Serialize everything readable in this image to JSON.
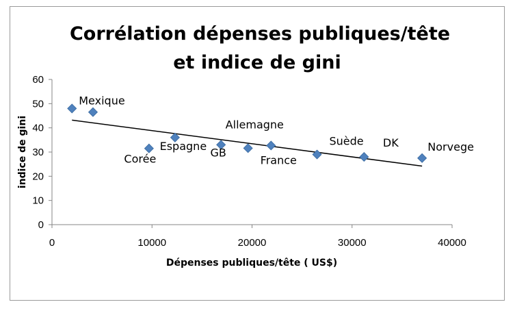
{
  "chart_data": {
    "type": "scatter",
    "title_lines": [
      "Corrélation dépenses publiques/tête",
      "et indice de gini"
    ],
    "xlabel": "Dépenses publiques/tête ( US$)",
    "ylabel": "indice de gini",
    "xlim": [
      0,
      40000
    ],
    "ylim": [
      0,
      60
    ],
    "x_ticks": [
      0,
      10000,
      20000,
      30000,
      40000
    ],
    "y_ticks": [
      0,
      10,
      20,
      30,
      40,
      50,
      60
    ],
    "marker_color": "#4f81bd",
    "points": [
      {
        "label": "Mexique",
        "x": 2000,
        "y": 48
      },
      {
        "label": "",
        "x": 4100,
        "y": 46.5
      },
      {
        "label": "Corée",
        "x": 9700,
        "y": 31.5
      },
      {
        "label": "Espagne",
        "x": 12300,
        "y": 36
      },
      {
        "label": "GB",
        "x": 16900,
        "y": 33
      },
      {
        "label": "",
        "x": 19600,
        "y": 31.6
      },
      {
        "label": "Allemagne",
        "x": 21900,
        "y": 32.7
      },
      {
        "label": "France",
        "x": 21900,
        "y": 32.7
      },
      {
        "label": "Suède",
        "x": 26500,
        "y": 29
      },
      {
        "label": "DK",
        "x": 31200,
        "y": 28
      },
      {
        "label": "Norvege",
        "x": 37000,
        "y": 27.5
      }
    ],
    "trendline": {
      "type": "linear",
      "from": {
        "x": 2000,
        "y": 43.2
      },
      "to": {
        "x": 37000,
        "y": 24.2
      },
      "color": "#000000"
    },
    "grid": false,
    "legend": "none"
  }
}
